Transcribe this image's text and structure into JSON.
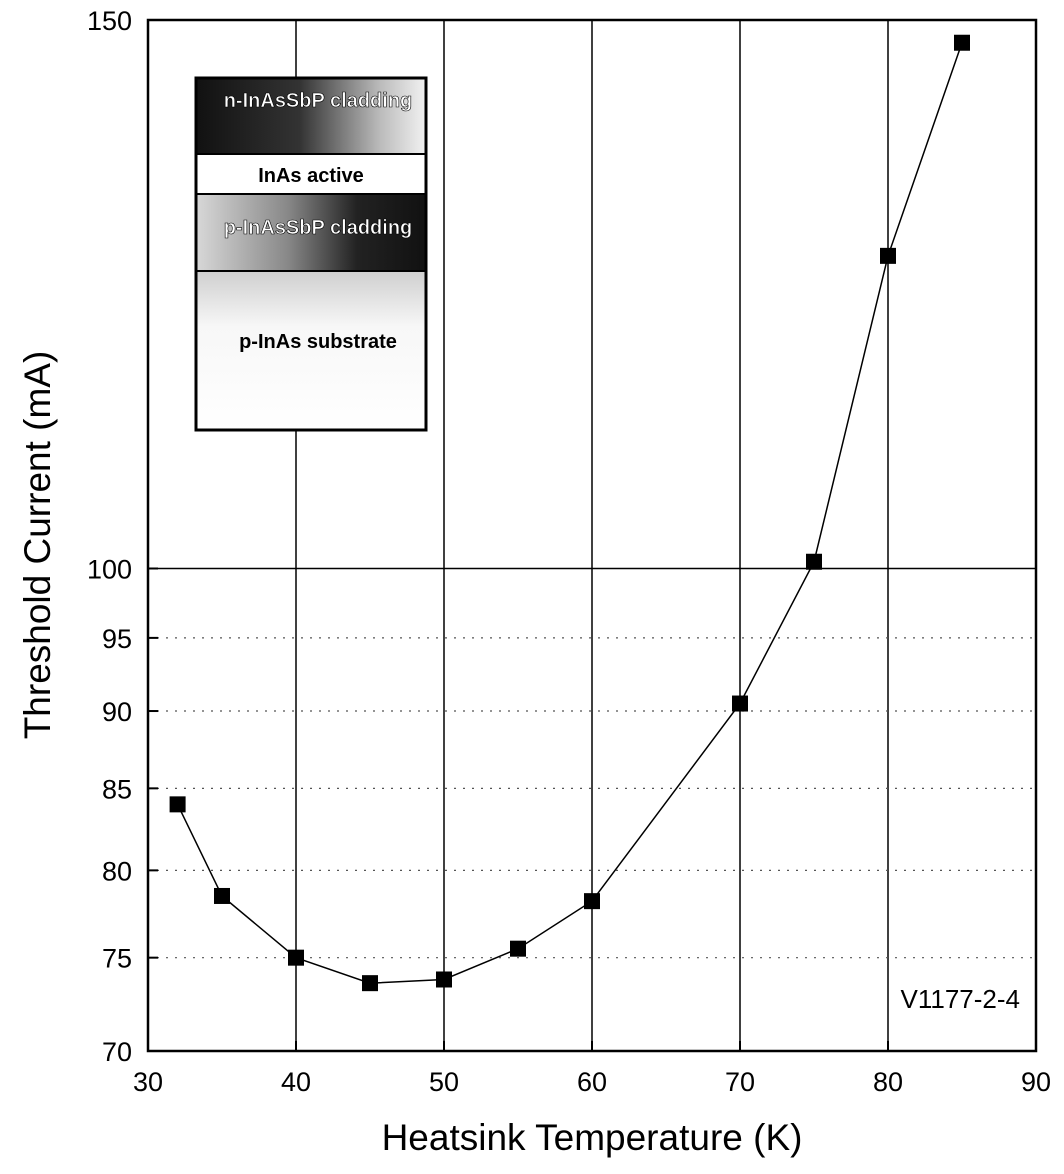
{
  "chart_data": {
    "type": "line",
    "title": "",
    "xlabel": "Heatsink Temperature (K)",
    "ylabel": "Threshold Current (mA)",
    "xlim": [
      30,
      90
    ],
    "ylim": [
      70,
      150
    ],
    "y_scale": "log",
    "x_ticks": [
      30,
      40,
      50,
      60,
      70,
      80,
      90
    ],
    "x_tick_labels": [
      "30",
      "40",
      "50",
      "60",
      "70",
      "80",
      "90"
    ],
    "y_ticks": [
      70,
      75,
      80,
      85,
      90,
      95,
      100,
      150
    ],
    "y_tick_labels": [
      "70",
      "75",
      "80",
      "85",
      "90",
      "95",
      "100",
      "150"
    ],
    "grid": {
      "major_x": [
        40,
        50,
        60,
        70,
        80
      ],
      "major_y": [
        100
      ],
      "minor_y_dotted": [
        75,
        80,
        85,
        90,
        95
      ]
    },
    "series": [
      {
        "marker": "square",
        "color": "#000000",
        "x": [
          32,
          35,
          40,
          45,
          50,
          55,
          60,
          70,
          75,
          80,
          85
        ],
        "y": [
          84.0,
          78.5,
          75.0,
          73.6,
          73.8,
          75.5,
          78.2,
          90.5,
          100.5,
          126.0,
          147.5
        ]
      }
    ],
    "annotations": [
      "V1177-2-4"
    ],
    "inset": {
      "layers": [
        "n-InAsSbP cladding",
        "InAs active",
        "p-InAsSbP cladding",
        "p-InAs substrate"
      ]
    }
  }
}
